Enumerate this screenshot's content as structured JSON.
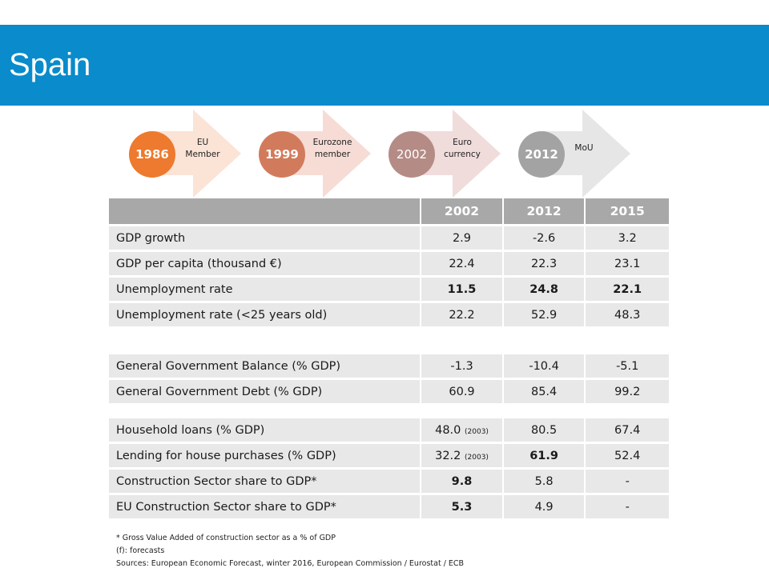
{
  "page": {
    "title": "Spain",
    "banner_color": "#0a8bcb"
  },
  "timeline": [
    {
      "year": "1986",
      "line1": "EU",
      "line2": "Member",
      "circle_color": "#ed7a2e",
      "arrow_color": "#fbe3d6"
    },
    {
      "year": "1999",
      "line1": "Eurozone",
      "line2": "member",
      "circle_color": "#d27b5c",
      "arrow_color": "#f6dcd5"
    },
    {
      "year": "2002",
      "line1": "Euro",
      "line2": "currency",
      "circle_color": "#b58b86",
      "arrow_color": "#efdcdb"
    },
    {
      "year": "2012",
      "line1": "MoU",
      "line2": "",
      "circle_color": "#a3a3a3",
      "arrow_color": "#e6e6e6"
    }
  ],
  "table": {
    "header": [
      "",
      "2002",
      "2012",
      "2015"
    ],
    "group1": [
      {
        "label": "GDP growth",
        "v2002": "2.9",
        "v2012": "-2.6",
        "v2015": "3.2",
        "bold": false
      },
      {
        "label": "GDP per capita (thousand €)",
        "v2002": "22.4",
        "v2012": "22.3",
        "v2015": "23.1",
        "bold": false
      },
      {
        "label": "Unemployment rate",
        "v2002": "11.5",
        "v2012": "24.8",
        "v2015": "22.1",
        "bold": true
      },
      {
        "label": "Unemployment rate (<25 years old)",
        "v2002": "22.2",
        "v2012": "52.9",
        "v2015": "48.3",
        "bold": false
      }
    ],
    "group2": [
      {
        "label": "General Government Balance (% GDP)",
        "v2002": "-1.3",
        "v2012": "-10.4",
        "v2015": "-5.1"
      },
      {
        "label": "General Government Debt (% GDP)",
        "v2002": "60.9",
        "v2012": "85.4",
        "v2015": "99.2"
      }
    ],
    "group3": [
      {
        "label": "Household loans (% GDP)",
        "v2002": "48.0",
        "v2002_note": "(2003)",
        "v2012": "80.5",
        "v2015": "67.4"
      },
      {
        "label": "Lending for house purchases (% GDP)",
        "v2002": "32.2",
        "v2002_note": "(2003)",
        "v2012": "61.9",
        "v2015": "52.4"
      },
      {
        "label": "Construction Sector share to GDP*",
        "v2002": "9.8",
        "v2012": "5.8",
        "v2015": "-"
      },
      {
        "label": "EU Construction Sector share to GDP*",
        "v2002": "5.3",
        "v2012": "4.9",
        "v2015": "-"
      }
    ]
  },
  "notes": {
    "line1": "* Gross Value Added of construction sector as a % of GDP",
    "line2": "(f): forecasts",
    "line3": "Sources: European Economic Forecast, winter 2016, European Commission  / Eurostat / ECB"
  }
}
